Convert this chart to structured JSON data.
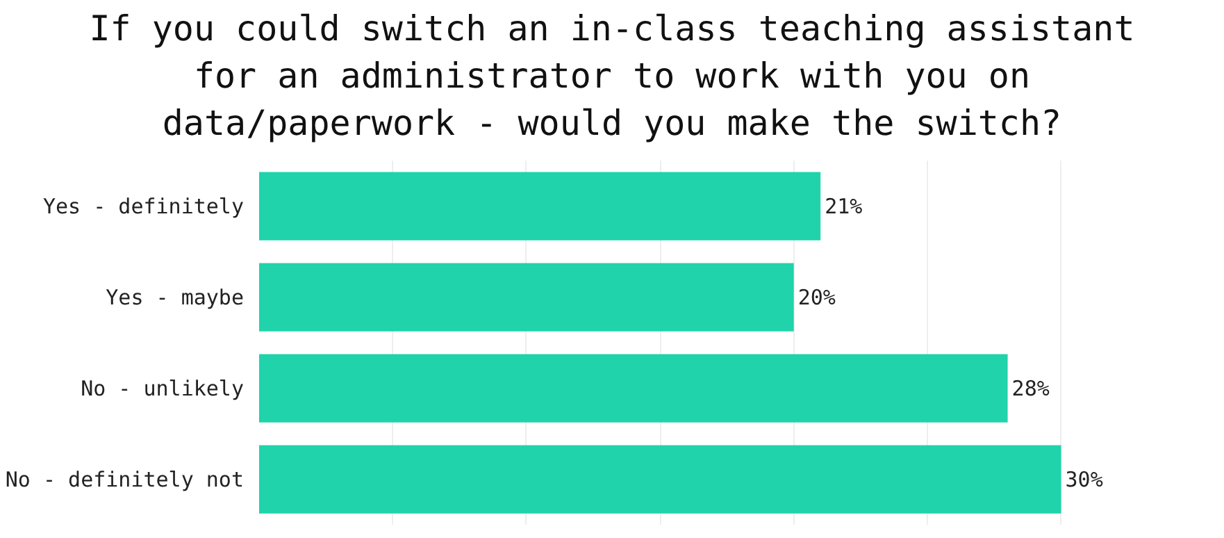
{
  "chart_data": {
    "type": "bar",
    "orientation": "horizontal",
    "title": "If you could switch an in-class teaching assistant for an administrator to work with you on data/paperwork - would you make the switch?",
    "categories": [
      "Yes - definitely",
      "Yes - maybe",
      "No - unlikely",
      "No - definitely not"
    ],
    "values": [
      21,
      20,
      28,
      30
    ],
    "color": "#20d3aa",
    "value_labels": [
      "21%",
      "20%",
      "28%",
      "30%"
    ],
    "grid": "x",
    "tick_labels": "y"
  }
}
